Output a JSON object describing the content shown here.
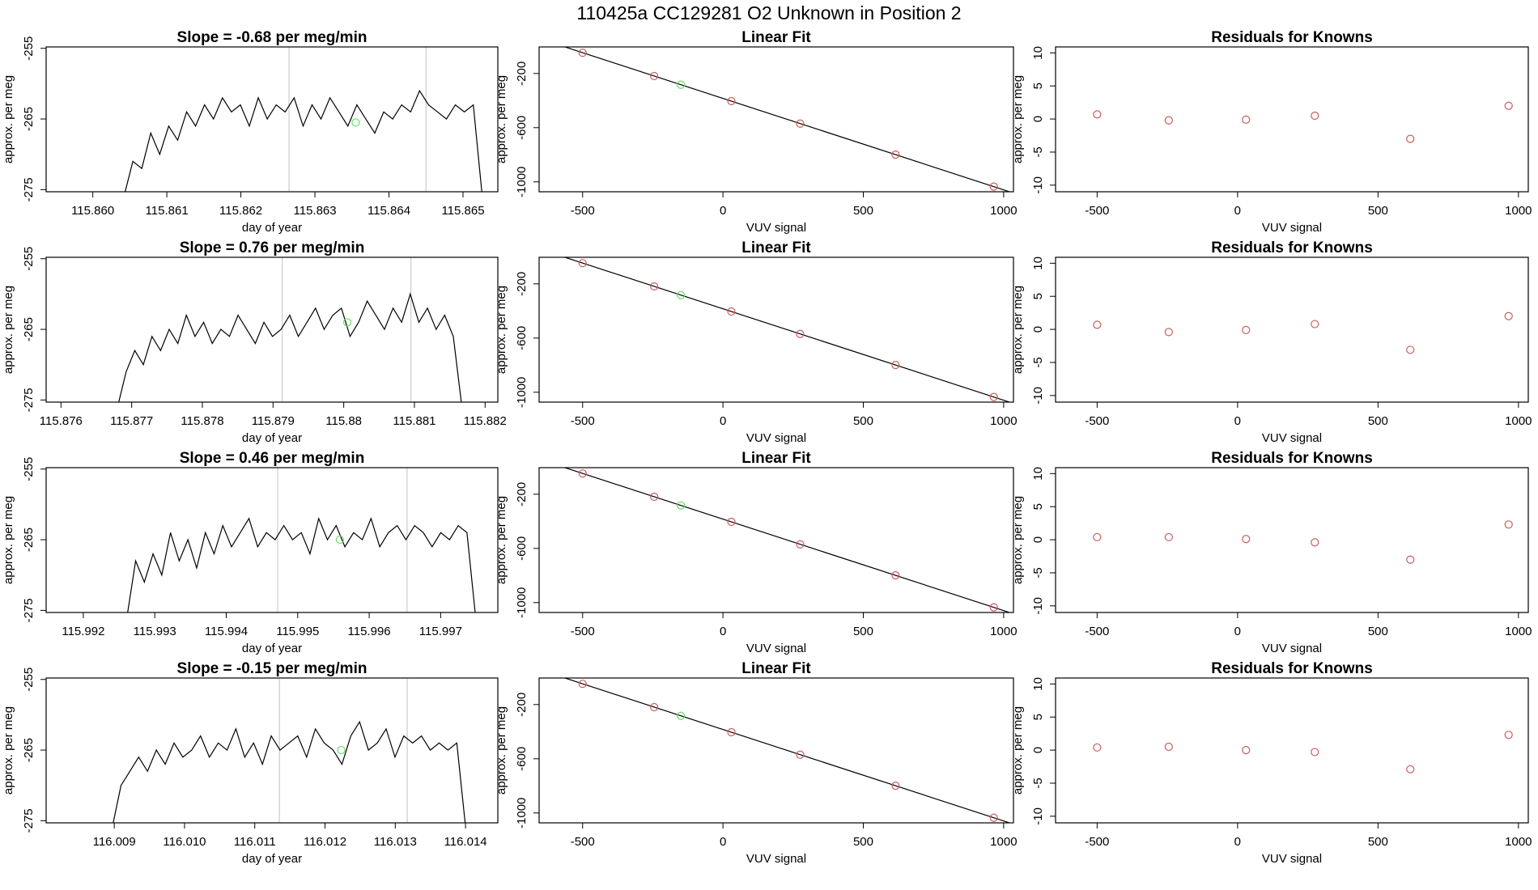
{
  "title": "110425a      CC129281   O2 Unknown in Position  2",
  "chart_data": [
    {
      "type": "line",
      "title": "Slope =  -0.68  per meg/min",
      "xlabel": "day of year",
      "ylabel": "approx. per meg",
      "x": [
        115.86042,
        115.860541,
        115.860662,
        115.860783,
        115.860904,
        115.861025,
        115.861146,
        115.861267,
        115.861388,
        115.861509,
        115.86163,
        115.861751,
        115.861872,
        115.861993,
        115.862114,
        115.862235,
        115.862356,
        115.862477,
        115.862598,
        115.862719,
        115.86284,
        115.862961,
        115.863082,
        115.863203,
        115.863324,
        115.863445,
        115.863566,
        115.863687,
        115.863808,
        115.863929,
        115.86405,
        115.864171,
        115.864292,
        115.864413,
        115.864534,
        115.864655,
        115.864776,
        115.864897,
        115.865018,
        115.865139,
        115.86526
      ],
      "values": [
        -276,
        -271,
        -272,
        -267,
        -270,
        -266,
        -268,
        -264,
        -266,
        -263,
        -265,
        -262,
        -264,
        -263,
        -266,
        -262,
        -265,
        -263,
        -264,
        -262,
        -266,
        -263,
        -265,
        -262,
        -264,
        -266,
        -263,
        -265,
        -267,
        -264,
        -265,
        -263,
        -264,
        -261,
        -263,
        -264,
        -265,
        -263,
        -264,
        -263,
        -276
      ],
      "color": "#000000",
      "xlim": [
        115.85937,
        115.86547
      ],
      "ylim": [
        -275.3,
        -254.8
      ],
      "xticks": [
        {
          "value": 115.86,
          "label": "115.860"
        },
        115.861,
        115.862,
        115.863,
        115.864,
        115.865
      ],
      "yticks": [
        -255,
        -265,
        -275
      ],
      "vlines": [
        115.86265,
        115.8645
      ],
      "vline_color": "#cccccc",
      "highlight": {
        "x": 115.86355,
        "value": -265.5,
        "color": "#66dd66"
      }
    },
    {
      "type": "scatter",
      "title": "Linear Fit",
      "xlabel": "VUV signal",
      "ylabel": "approx. per meg",
      "x": [
        -500,
        -245,
        -150,
        30,
        275,
        615,
        965
      ],
      "values": [
        -47,
        -219,
        -283,
        -404,
        -570,
        -799,
        -1035
      ],
      "colors": [
        "#cd5c5c",
        "#cd5c5c",
        "#66dd66",
        "#cd5c5c",
        "#cd5c5c",
        "#cd5c5c",
        "#cd5c5c"
      ],
      "fit_line": {
        "intercept": -384,
        "slope": -0.675
      },
      "line_color": "#000000",
      "xlim": [
        -655,
        1035
      ],
      "ylim": [
        -1073,
        -4
      ],
      "xticks": [
        -500,
        0,
        500,
        1000
      ],
      "yticks": [
        -200,
        -600,
        -1000
      ]
    },
    {
      "type": "scatter",
      "title": "Residuals for Knowns",
      "xlabel": "VUV signal",
      "ylabel": "approx. per meg",
      "x": [
        -500,
        -245,
        30,
        275,
        615,
        965
      ],
      "values": [
        0.7,
        -0.2,
        -0.1,
        0.5,
        -3.0,
        2.0
      ],
      "color": "#cd5c5c",
      "xlim": [
        -648,
        1035
      ],
      "ylim": [
        -11,
        10.9
      ],
      "xticks": [
        -500,
        0,
        500,
        1000
      ],
      "yticks": [
        10,
        5,
        0,
        -5,
        -10
      ]
    },
    {
      "type": "line",
      "title": "Slope =  0.76  per meg/min",
      "xlabel": "day of year",
      "ylabel": "approx. per meg",
      "x": [
        115.8768,
        115.876922,
        115.877044,
        115.877165,
        115.877287,
        115.877409,
        115.877531,
        115.877653,
        115.877774,
        115.877896,
        115.878018,
        115.87814,
        115.878262,
        115.878383,
        115.878505,
        115.878627,
        115.878749,
        115.878871,
        115.878992,
        115.879114,
        115.879236,
        115.879358,
        115.87948,
        115.879601,
        115.879723,
        115.879845,
        115.879967,
        115.880089,
        115.88021,
        115.880332,
        115.880454,
        115.880576,
        115.880698,
        115.880819,
        115.880941,
        115.881063,
        115.881185,
        115.881307,
        115.881428,
        115.88155,
        115.881672
      ],
      "values": [
        -276,
        -271,
        -268,
        -270,
        -266,
        -268,
        -265,
        -267,
        -263,
        -266,
        -264,
        -267,
        -265,
        -266,
        -263,
        -265,
        -267,
        -264,
        -266,
        -265,
        -263,
        -266,
        -264,
        -262,
        -265,
        -263,
        -262,
        -266,
        -264,
        -261,
        -263,
        -265,
        -262,
        -264,
        -260,
        -264,
        -262,
        -265,
        -263,
        -266,
        -276
      ],
      "color": "#000000",
      "xlim": [
        115.87579,
        115.88218
      ],
      "ylim": [
        -275.3,
        -254.8
      ],
      "xticks": [
        115.876,
        115.877,
        115.878,
        115.879,
        115.88,
        115.881,
        115.882
      ],
      "yticks": [
        -255,
        -265,
        -275
      ],
      "vlines": [
        115.87913,
        115.88095
      ],
      "vline_color": "#cccccc",
      "highlight": {
        "x": 115.88005,
        "value": -264,
        "color": "#66dd66"
      }
    },
    {
      "type": "scatter",
      "title": "Linear Fit",
      "xlabel": "VUV signal",
      "ylabel": "approx. per meg",
      "x": [
        -500,
        -245,
        -150,
        30,
        275,
        615,
        965
      ],
      "values": [
        -47,
        -219,
        -283,
        -404,
        -570,
        -799,
        -1035
      ],
      "colors": [
        "#cd5c5c",
        "#cd5c5c",
        "#66dd66",
        "#cd5c5c",
        "#cd5c5c",
        "#cd5c5c",
        "#cd5c5c"
      ],
      "fit_line": {
        "intercept": -384,
        "slope": -0.675
      },
      "line_color": "#000000",
      "xlim": [
        -655,
        1035
      ],
      "ylim": [
        -1073,
        -4
      ],
      "xticks": [
        -500,
        0,
        500,
        1000
      ],
      "yticks": [
        -200,
        -600,
        -1000
      ]
    },
    {
      "type": "scatter",
      "title": "Residuals for Knowns",
      "xlabel": "VUV signal",
      "ylabel": "approx. per meg",
      "x": [
        -500,
        -245,
        30,
        275,
        615,
        965
      ],
      "values": [
        0.7,
        -0.4,
        -0.1,
        0.8,
        -3.1,
        2.0
      ],
      "color": "#cd5c5c",
      "xlim": [
        -648,
        1035
      ],
      "ylim": [
        -11,
        10.9
      ],
      "xticks": [
        -500,
        0,
        500,
        1000
      ],
      "yticks": [
        10,
        5,
        0,
        -5,
        -10
      ]
    },
    {
      "type": "line",
      "title": "Slope =  0.46  per meg/min",
      "xlabel": "day of year",
      "ylabel": "approx. per meg",
      "x": [
        115.99261,
        115.992732,
        115.992854,
        115.992976,
        115.993098,
        115.99322,
        115.993342,
        115.993464,
        115.993586,
        115.993708,
        115.99383,
        115.993952,
        115.994074,
        115.994196,
        115.994318,
        115.99444,
        115.994562,
        115.994684,
        115.994806,
        115.994928,
        115.99505,
        115.995172,
        115.995294,
        115.995416,
        115.995538,
        115.99566,
        115.995782,
        115.995904,
        115.996026,
        115.996148,
        115.99627,
        115.996392,
        115.996514,
        115.996636,
        115.996758,
        115.99688,
        115.997002,
        115.997124,
        115.997246,
        115.997368,
        115.99749
      ],
      "values": [
        -276,
        -268,
        -271,
        -267,
        -270,
        -264,
        -268,
        -265,
        -269,
        -264,
        -267,
        -263,
        -266,
        -264,
        -262,
        -266,
        -264,
        -265,
        -263,
        -265,
        -264,
        -267,
        -262,
        -265,
        -263,
        -266,
        -264,
        -265,
        -262,
        -266,
        -264,
        -263,
        -265,
        -263,
        -264,
        -266,
        -264,
        -265,
        -263,
        -264,
        -276
      ],
      "color": "#000000",
      "xlim": [
        115.99148,
        115.9978
      ],
      "ylim": [
        -275.3,
        -254.8
      ],
      "xticks": [
        115.992,
        115.993,
        115.994,
        115.995,
        115.996,
        115.997
      ],
      "yticks": [
        -255,
        -265,
        -275
      ],
      "vlines": [
        115.99472,
        115.99653
      ],
      "vline_color": "#cccccc",
      "highlight": {
        "x": 115.99559,
        "value": -265,
        "color": "#66dd66"
      }
    },
    {
      "type": "scatter",
      "title": "Linear Fit",
      "xlabel": "VUV signal",
      "ylabel": "approx. per meg",
      "x": [
        -500,
        -245,
        -150,
        30,
        275,
        615,
        965
      ],
      "values": [
        -47,
        -219,
        -283,
        -404,
        -570,
        -799,
        -1035
      ],
      "colors": [
        "#cd5c5c",
        "#cd5c5c",
        "#66dd66",
        "#cd5c5c",
        "#cd5c5c",
        "#cd5c5c",
        "#cd5c5c"
      ],
      "fit_line": {
        "intercept": -384,
        "slope": -0.675
      },
      "line_color": "#000000",
      "xlim": [
        -655,
        1035
      ],
      "ylim": [
        -1073,
        -4
      ],
      "xticks": [
        -500,
        0,
        500,
        1000
      ],
      "yticks": [
        -200,
        -600,
        -1000
      ]
    },
    {
      "type": "scatter",
      "title": "Residuals for Knowns",
      "xlabel": "VUV signal",
      "ylabel": "approx. per meg",
      "x": [
        -500,
        -245,
        30,
        275,
        615,
        965
      ],
      "values": [
        0.4,
        0.4,
        0.1,
        -0.4,
        -3.0,
        2.3
      ],
      "color": "#cd5c5c",
      "xlim": [
        -648,
        1035
      ],
      "ylim": [
        -11,
        10.9
      ],
      "xticks": [
        -500,
        0,
        500,
        1000
      ],
      "yticks": [
        10,
        5,
        0,
        -5,
        -10
      ]
    },
    {
      "type": "line",
      "title": "Slope =  -0.15  per meg/min",
      "xlabel": "day of year",
      "ylabel": "approx. per meg",
      "x": [
        116.00897,
        116.009096,
        116.009222,
        116.009347,
        116.009473,
        116.009599,
        116.009725,
        116.009851,
        116.009976,
        116.010102,
        116.010228,
        116.010354,
        116.01048,
        116.010605,
        116.010731,
        116.010857,
        116.010983,
        116.011109,
        116.011234,
        116.01136,
        116.011486,
        116.011612,
        116.011738,
        116.011863,
        116.011989,
        116.012115,
        116.012241,
        116.012367,
        116.012492,
        116.012618,
        116.012744,
        116.01287,
        116.012996,
        116.013121,
        116.013247,
        116.013373,
        116.013499,
        116.013625,
        116.01375,
        116.013876,
        116.014002
      ],
      "values": [
        -276,
        -270,
        -268,
        -266,
        -268,
        -265,
        -267,
        -264,
        -266,
        -265,
        -263,
        -266,
        -264,
        -265,
        -262,
        -266,
        -264,
        -267,
        -263,
        -265,
        -264,
        -263,
        -266,
        -262,
        -264,
        -265,
        -267,
        -263,
        -261,
        -265,
        -264,
        -262,
        -266,
        -263,
        -264,
        -263,
        -265,
        -264,
        -265,
        -264,
        -276
      ],
      "color": "#000000",
      "xlim": [
        116.00803,
        116.01446
      ],
      "ylim": [
        -275.3,
        -254.8
      ],
      "xticks": [
        116.009,
        {
          "value": 116.01,
          "label": "116.010"
        },
        116.011,
        116.012,
        116.013,
        116.014
      ],
      "yticks": [
        -255,
        -265,
        -275
      ],
      "vlines": [
        116.01135,
        116.01317
      ],
      "vline_color": "#cccccc",
      "highlight": {
        "x": 116.01223,
        "value": -265,
        "color": "#66dd66"
      }
    },
    {
      "type": "scatter",
      "title": "Linear Fit",
      "xlabel": "VUV signal",
      "ylabel": "approx. per meg",
      "x": [
        -500,
        -245,
        -150,
        30,
        275,
        615,
        965
      ],
      "values": [
        -47,
        -219,
        -283,
        -404,
        -570,
        -799,
        -1035
      ],
      "colors": [
        "#cd5c5c",
        "#cd5c5c",
        "#66dd66",
        "#cd5c5c",
        "#cd5c5c",
        "#cd5c5c",
        "#cd5c5c"
      ],
      "fit_line": {
        "intercept": -384,
        "slope": -0.675
      },
      "line_color": "#000000",
      "xlim": [
        -655,
        1035
      ],
      "ylim": [
        -1073,
        -4
      ],
      "xticks": [
        -500,
        0,
        500,
        1000
      ],
      "yticks": [
        -200,
        -600,
        -1000
      ]
    },
    {
      "type": "scatter",
      "title": "Residuals for Knowns",
      "xlabel": "VUV signal",
      "ylabel": "approx. per meg",
      "x": [
        -500,
        -245,
        30,
        275,
        615,
        965
      ],
      "values": [
        0.4,
        0.5,
        0.0,
        -0.3,
        -2.9,
        2.3
      ],
      "color": "#cd5c5c",
      "xlim": [
        -648,
        1035
      ],
      "ylim": [
        -11,
        10.9
      ],
      "xticks": [
        -500,
        0,
        500,
        1000
      ],
      "yticks": [
        10,
        5,
        0,
        -5,
        -10
      ]
    }
  ]
}
